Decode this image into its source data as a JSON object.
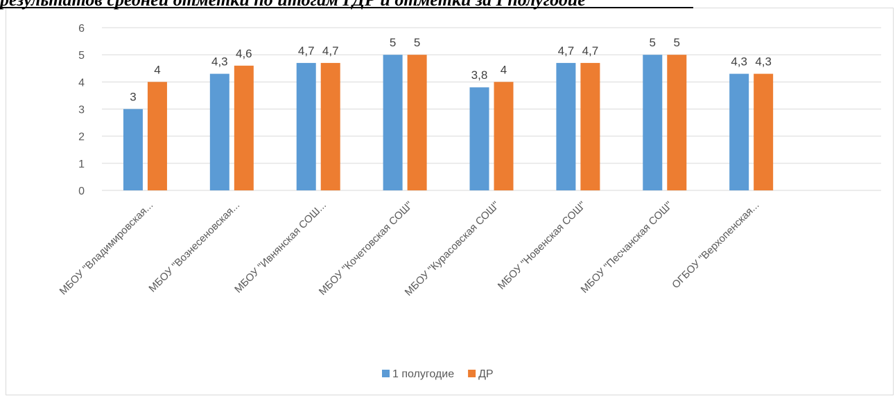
{
  "header": {
    "title": "результатов средней отметки по итогам ГДР и отметки за I полугодие"
  },
  "chart_data": {
    "type": "bar",
    "title": "",
    "xlabel": "",
    "ylabel": "",
    "ylim": [
      0,
      6
    ],
    "yticks": [
      "0",
      "1",
      "2",
      "3",
      "4",
      "5",
      "6"
    ],
    "grid": true,
    "legend_position": "bottom",
    "categories": [
      "МБОУ \"Владимировская...",
      "МБОУ \"Вознесеновская...",
      "МБОУ \"Ивнянская СОШ...",
      "МБОУ \"Кочетовская СОШ\"",
      "МБОУ \"Курасовская СОШ\"",
      "МБОУ \"Новенская СОШ\"",
      "МБОУ \"Песчанская СОШ\"",
      "ОГБОУ \"Верхопенская..."
    ],
    "series": [
      {
        "name": "1 полугодие",
        "color": "#5b9bd5",
        "values": [
          3,
          4.3,
          4.7,
          5,
          3.8,
          4.7,
          5,
          4.3
        ],
        "labels": [
          "3",
          "4,3",
          "4,7",
          "5",
          "3,8",
          "4,7",
          "5",
          "4,3"
        ]
      },
      {
        "name": "ДР",
        "color": "#ed7d31",
        "values": [
          4,
          4.6,
          4.7,
          5,
          4,
          4.7,
          5,
          4.3
        ],
        "labels": [
          "4",
          "4,6",
          "4,7",
          "5",
          "4",
          "4,7",
          "5",
          "4,3"
        ]
      }
    ]
  }
}
